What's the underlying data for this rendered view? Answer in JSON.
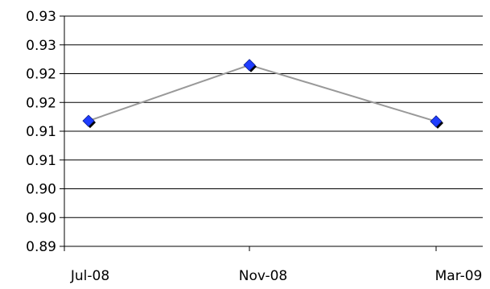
{
  "chart_data": {
    "type": "line",
    "categories": [
      "Jul-08",
      "Nov-08",
      "Mar-09"
    ],
    "series": [
      {
        "values": [
          0.9118,
          0.9215,
          0.9117
        ],
        "line_color": "#999999",
        "marker_color": "#1f3dff",
        "marker_shadow_color": "#000000",
        "marker": "diamond"
      }
    ],
    "y_tick_labels": [
      "0.89",
      "0.90",
      "0.90",
      "0.91",
      "0.91",
      "0.92",
      "0.92",
      "0.93",
      "0.93"
    ],
    "ylim": [
      0.89,
      0.93
    ],
    "grid": true,
    "grid_color": "#000000",
    "title": "",
    "xlabel": "",
    "ylabel": "",
    "legend": "none"
  }
}
